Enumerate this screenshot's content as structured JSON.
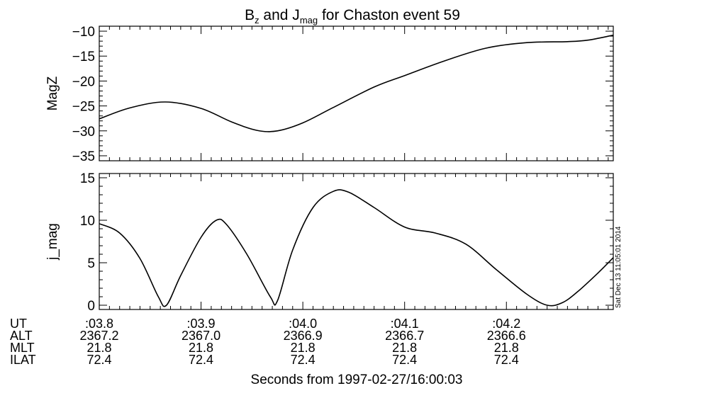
{
  "title_main": "B",
  "title_sub_1": "z",
  "title_mid": " and J",
  "title_sub_2": "mag",
  "title_tail": " for Chaston event 59",
  "timestamp": "Sat Dec 13 11:05:01 2014",
  "xlabel": "Seconds from 1997-02-27/16:00:03",
  "chart_data": [
    {
      "type": "line",
      "ylabel": "MagZ",
      "ylim": [
        -36,
        -9
      ],
      "yticks": [
        -35,
        -30,
        -25,
        -20,
        -15,
        -10
      ],
      "xlim": [
        3.8,
        4.305
      ],
      "x": [
        3.8,
        3.83,
        3.865,
        3.9,
        3.93,
        3.955,
        3.975,
        4.0,
        4.03,
        4.07,
        4.1,
        4.14,
        4.18,
        4.22,
        4.26,
        4.28,
        4.305
      ],
      "values": [
        -27.6,
        -25.4,
        -24.2,
        -25.5,
        -28.2,
        -29.9,
        -30.0,
        -28.4,
        -25.3,
        -21.2,
        -18.9,
        -15.9,
        -13.4,
        -12.3,
        -12.1,
        -11.8,
        -10.8
      ]
    },
    {
      "type": "line",
      "ylabel": "j_mag",
      "ylim": [
        -0.5,
        15.5
      ],
      "yticks": [
        0,
        5,
        10,
        15
      ],
      "xlim": [
        3.8,
        4.305
      ],
      "x": [
        3.8,
        3.82,
        3.84,
        3.858,
        3.866,
        3.88,
        3.9,
        3.915,
        3.925,
        3.945,
        3.968,
        3.975,
        3.99,
        4.01,
        4.03,
        4.045,
        4.07,
        4.1,
        4.13,
        4.16,
        4.19,
        4.22,
        4.24,
        4.255,
        4.27,
        4.29,
        4.305
      ],
      "values": [
        9.6,
        8.5,
        5.5,
        1.0,
        0.0,
        3.5,
        8.0,
        10.0,
        9.5,
        6.0,
        1.0,
        0.5,
        6.5,
        11.5,
        13.4,
        13.3,
        11.5,
        9.2,
        8.5,
        7.2,
        4.2,
        1.3,
        0.0,
        0.3,
        1.6,
        3.8,
        5.6
      ]
    }
  ],
  "x_ticks": [
    ":03.8",
    ":03.9",
    ":04.0",
    ":04.1",
    ":04.2"
  ],
  "x_tick_values": [
    3.8,
    3.9,
    4.0,
    4.1,
    4.2
  ],
  "annotation_rows": [
    {
      "label": "UT",
      "values": [
        ":03.8",
        ":03.9",
        ":04.0",
        ":04.1",
        ":04.2"
      ]
    },
    {
      "label": "ALT",
      "values": [
        "2367.2",
        "2367.0",
        "2366.9",
        "2366.7",
        "2366.6"
      ]
    },
    {
      "label": "MLT",
      "values": [
        "21.8",
        "21.8",
        "21.8",
        "21.8",
        "21.8"
      ]
    },
    {
      "label": "ILAT",
      "values": [
        "72.4",
        "72.4",
        "72.4",
        "72.4",
        "72.4"
      ]
    }
  ]
}
